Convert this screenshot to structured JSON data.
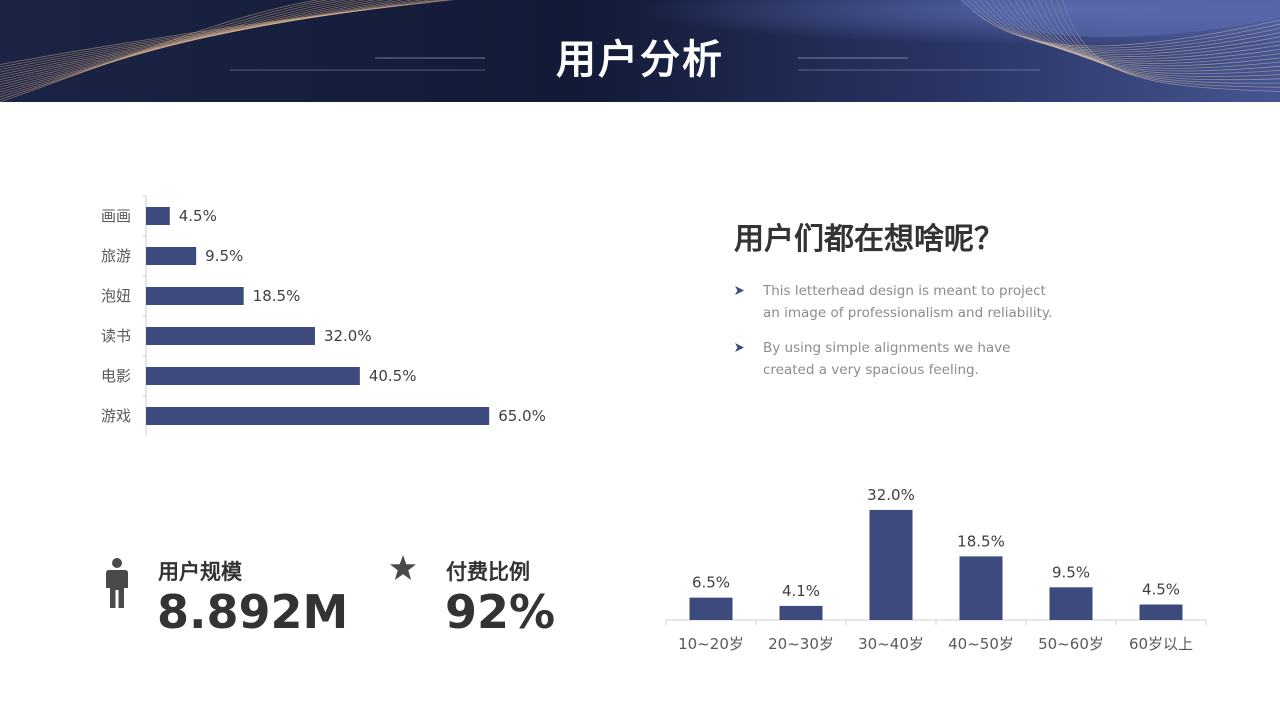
{
  "header": {
    "title": "用户分析"
  },
  "chart_data": [
    {
      "type": "bar",
      "orientation": "horizontal",
      "categories": [
        "画画",
        "旅游",
        "泡妞",
        "读书",
        "电影",
        "游戏"
      ],
      "values": [
        4.5,
        9.5,
        18.5,
        32.0,
        40.5,
        65.0
      ],
      "value_labels": [
        "4.5%",
        "9.5%",
        "18.5%",
        "32.0%",
        "40.5%",
        "65.0%"
      ],
      "unit": "%",
      "xlim": [
        0,
        100
      ],
      "grid": false,
      "color": "#3d4a7e"
    },
    {
      "type": "bar",
      "orientation": "vertical",
      "categories": [
        "10~20岁",
        "20~30岁",
        "30~40岁",
        "40~50岁",
        "50~60岁",
        "60岁以上"
      ],
      "values": [
        6.5,
        4.1,
        32.0,
        18.5,
        9.5,
        4.5
      ],
      "value_labels": [
        "6.5%",
        "4.1%",
        "32.0%",
        "18.5%",
        "9.5%",
        "4.5%"
      ],
      "unit": "%",
      "ylim": [
        0,
        32
      ],
      "grid": false,
      "color": "#3d4a7e"
    }
  ],
  "info": {
    "question": "用户们都在想啥呢？",
    "bullets": [
      "This letterhead design is meant to project an image of professionalism and reliability.",
      "By using simple alignments we have created a very spacious feeling."
    ]
  },
  "stats": [
    {
      "icon": "person-icon",
      "label": "用户规模",
      "value": "8.892M"
    },
    {
      "icon": "star-icon",
      "label": "付费比例",
      "value": "92%"
    }
  ],
  "colors": {
    "bar": "#3d4a7e",
    "banner_dark": "#101a36",
    "banner_blue": "#3b4a85",
    "text_dark": "#333333",
    "text_muted": "#8c8c8c"
  }
}
